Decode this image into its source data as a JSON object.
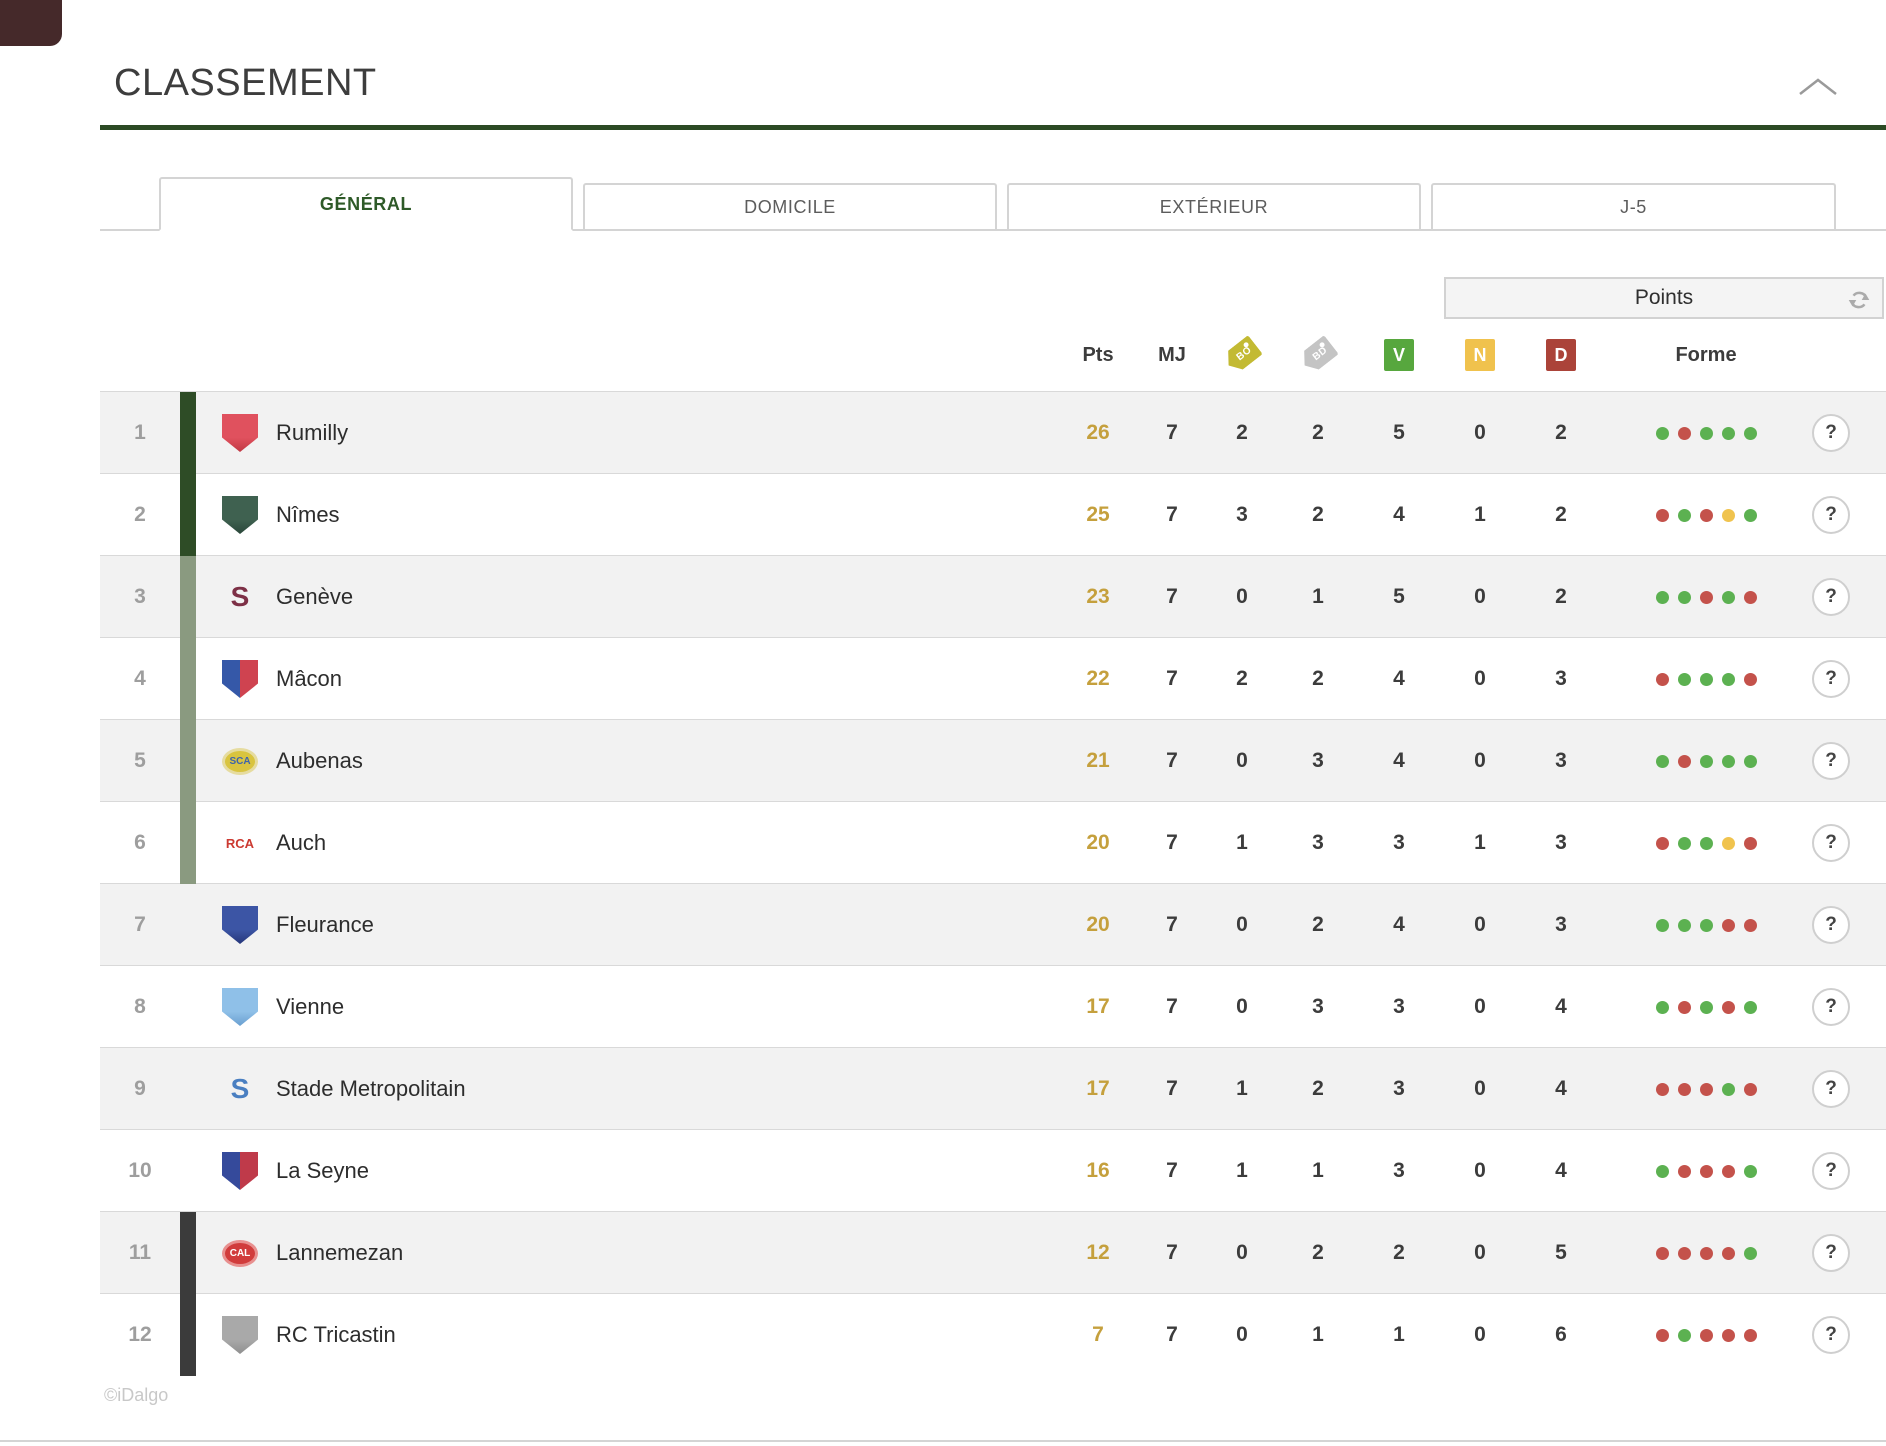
{
  "header": {
    "title": "CLASSEMENT"
  },
  "tabs": [
    {
      "label": "GÉNÉRAL",
      "active": true
    },
    {
      "label": "DOMICILE",
      "active": false
    },
    {
      "label": "EXTÉRIEUR",
      "active": false
    },
    {
      "label": "J-5",
      "active": false
    }
  ],
  "sort_selector": {
    "label": "Points"
  },
  "columns": {
    "pts": "Pts",
    "mj": "MJ",
    "bo": "BO",
    "bd": "BD",
    "v": "V",
    "n": "N",
    "d": "D",
    "forme": "Forme"
  },
  "colors": {
    "accent_green": "#2c4a24",
    "active_tab_text": "#2e5a28",
    "points_gold": "#c5a03d",
    "zone_top": "#2e4c26",
    "zone_mid": "#8a9a80",
    "zone_bottom": "#3b3b3b",
    "header_v": "#57a73e",
    "header_n": "#f0c24d",
    "header_d": "#ab4339",
    "tag_bo": "#c3ba33",
    "tag_bd": "#c4c4c4",
    "form": {
      "g": "#5cb151",
      "r": "#c4524b",
      "y": "#f0c34e"
    }
  },
  "help_button_label": "?",
  "standings": [
    {
      "rank": 1,
      "team": "Rumilly",
      "bar": "#2e4c26",
      "logo": {
        "type": "shield",
        "c1": "#e0515e",
        "c2": "#c13944"
      },
      "pts": 26,
      "mj": 7,
      "bo": 2,
      "bd": 2,
      "v": 5,
      "n": 0,
      "d": 2,
      "forme": [
        "g",
        "r",
        "g",
        "g",
        "g"
      ]
    },
    {
      "rank": 2,
      "team": "Nîmes",
      "bar": "#2e4c26",
      "logo": {
        "type": "shield",
        "c1": "#3f6150",
        "c2": "#2a473a"
      },
      "pts": 25,
      "mj": 7,
      "bo": 3,
      "bd": 2,
      "v": 4,
      "n": 1,
      "d": 2,
      "forme": [
        "r",
        "g",
        "r",
        "y",
        "g"
      ]
    },
    {
      "rank": 3,
      "team": "Genève",
      "bar": "#8a9a80",
      "logo": {
        "type": "text",
        "c1": "#7d3046",
        "text": "S"
      },
      "pts": 23,
      "mj": 7,
      "bo": 0,
      "bd": 1,
      "v": 5,
      "n": 0,
      "d": 2,
      "forme": [
        "g",
        "g",
        "r",
        "g",
        "r"
      ]
    },
    {
      "rank": 4,
      "team": "Mâcon",
      "bar": "#8a9a80",
      "logo": {
        "type": "shield",
        "c1": "#3558a8",
        "c2": "#cf4350",
        "split": true
      },
      "pts": 22,
      "mj": 7,
      "bo": 2,
      "bd": 2,
      "v": 4,
      "n": 0,
      "d": 3,
      "forme": [
        "r",
        "g",
        "g",
        "g",
        "r"
      ]
    },
    {
      "rank": 5,
      "team": "Aubenas",
      "bar": "#8a9a80",
      "logo": {
        "type": "oval",
        "c1": "#d9c43f",
        "c2": "#e6dca0",
        "text": "SCA",
        "textColor": "#3e63ad"
      },
      "pts": 21,
      "mj": 7,
      "bo": 0,
      "bd": 3,
      "v": 4,
      "n": 0,
      "d": 3,
      "forme": [
        "g",
        "r",
        "g",
        "g",
        "g"
      ]
    },
    {
      "rank": 6,
      "team": "Auch",
      "bar": "#8a9a80",
      "logo": {
        "type": "text",
        "c1": "#cc3a31",
        "text": "RCA"
      },
      "pts": 20,
      "mj": 7,
      "bo": 1,
      "bd": 3,
      "v": 3,
      "n": 1,
      "d": 3,
      "forme": [
        "r",
        "g",
        "g",
        "y",
        "r"
      ]
    },
    {
      "rank": 7,
      "team": "Fleurance",
      "bar": null,
      "logo": {
        "type": "shield",
        "c1": "#3c55a5",
        "c2": "#26377a"
      },
      "pts": 20,
      "mj": 7,
      "bo": 0,
      "bd": 2,
      "v": 4,
      "n": 0,
      "d": 3,
      "forme": [
        "g",
        "g",
        "g",
        "r",
        "r"
      ]
    },
    {
      "rank": 8,
      "team": "Vienne",
      "bar": null,
      "logo": {
        "type": "shield",
        "c1": "#8fc0e8",
        "c2": "#6a9fd0"
      },
      "pts": 17,
      "mj": 7,
      "bo": 0,
      "bd": 3,
      "v": 3,
      "n": 0,
      "d": 4,
      "forme": [
        "g",
        "r",
        "g",
        "r",
        "g"
      ]
    },
    {
      "rank": 9,
      "team": "Stade Metropolitain",
      "bar": null,
      "logo": {
        "type": "text",
        "c1": "#4a7fc1",
        "text": "S"
      },
      "pts": 17,
      "mj": 7,
      "bo": 1,
      "bd": 2,
      "v": 3,
      "n": 0,
      "d": 4,
      "forme": [
        "r",
        "r",
        "r",
        "g",
        "r"
      ]
    },
    {
      "rank": 10,
      "team": "La Seyne",
      "bar": null,
      "logo": {
        "type": "shield",
        "c1": "#354a9b",
        "c2": "#bf3a4a",
        "split": true
      },
      "pts": 16,
      "mj": 7,
      "bo": 1,
      "bd": 1,
      "v": 3,
      "n": 0,
      "d": 4,
      "forme": [
        "g",
        "r",
        "r",
        "r",
        "g"
      ]
    },
    {
      "rank": 11,
      "team": "Lannemezan",
      "bar": "#3b3b3b",
      "logo": {
        "type": "oval",
        "c1": "#d13c3c",
        "c2": "#e8908f",
        "text": "CAL",
        "textColor": "#ffffff"
      },
      "pts": 12,
      "mj": 7,
      "bo": 0,
      "bd": 2,
      "v": 2,
      "n": 0,
      "d": 5,
      "forme": [
        "r",
        "r",
        "r",
        "r",
        "g"
      ]
    },
    {
      "rank": 12,
      "team": "RC Tricastin",
      "bar": "#3b3b3b",
      "logo": {
        "type": "shield",
        "c1": "#a9a9a9",
        "c2": "#8f8f8f"
      },
      "pts": 7,
      "mj": 7,
      "bo": 0,
      "bd": 1,
      "v": 1,
      "n": 0,
      "d": 6,
      "forme": [
        "r",
        "g",
        "r",
        "r",
        "r"
      ]
    }
  ],
  "footer": {
    "credit": "©iDalgo"
  }
}
